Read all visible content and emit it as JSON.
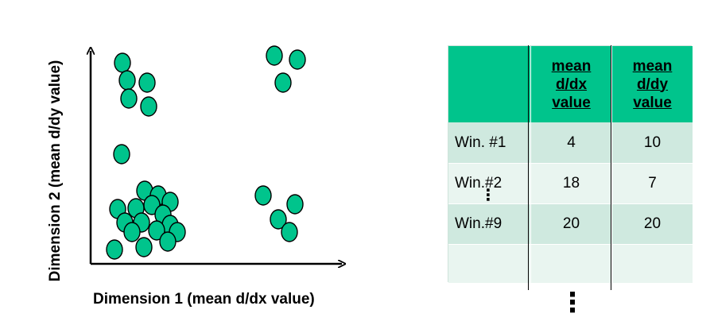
{
  "scatter": {
    "y_axis_label": "Dimension 2 (mean d/dy value)",
    "x_axis_label": "Dimension 1 (mean d/dx value)",
    "point_color": "#00c48c",
    "point_outline_color": "#000000"
  },
  "table": {
    "header_color": "#00c48c",
    "headers": [
      "",
      "mean\nd/dx\nvalue",
      "mean\nd/dy\nvalue"
    ],
    "rows": [
      {
        "label": "Win. #1",
        "dx": "4",
        "dy": "10"
      },
      {
        "label": "Win.#2",
        "dx": "18",
        "dy": "7"
      },
      {
        "label": "Win.#9",
        "dx": "20",
        "dy": "20"
      },
      {
        "label": "",
        "dx": "",
        "dy": ""
      }
    ],
    "row_ellipsis": "⋮",
    "bottom_ellipsis": "⋮"
  }
}
